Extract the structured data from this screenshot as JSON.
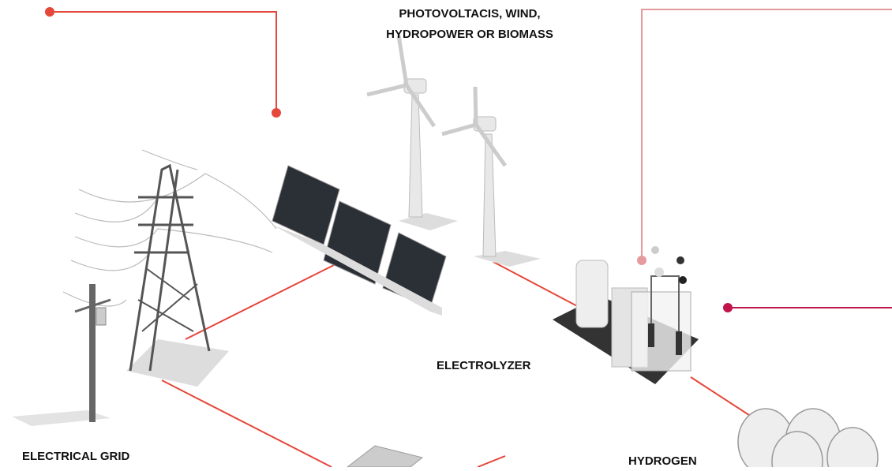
{
  "labels": {
    "sources": [
      "PHOTOVOLTACIS, WIND,",
      "HYDROPOWER OR BIOMASS"
    ],
    "electrolyzer": "ELECTROLYZER",
    "grid": "ELECTRICAL GRID",
    "hydrogen": "HYDROGEN"
  }
}
